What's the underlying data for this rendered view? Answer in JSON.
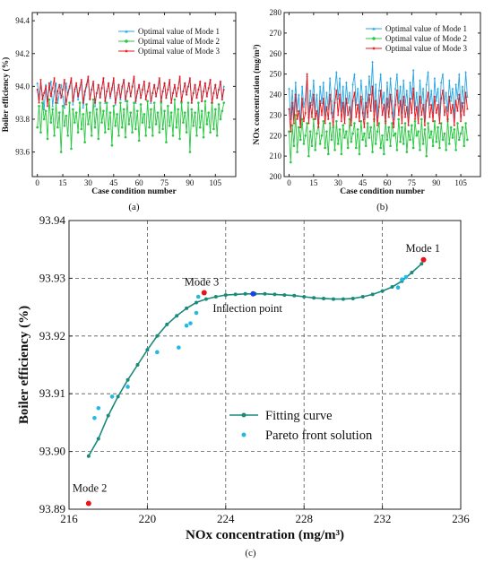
{
  "chart_data": [
    {
      "panel_label": "(a)",
      "type": "line",
      "xlabel": "Case condition number",
      "ylabel": "Boiler efficiency (%)",
      "xlim": [
        -3,
        117
      ],
      "ylim": [
        93.45,
        94.45
      ],
      "xticks": [
        "0",
        "15",
        "30",
        "45",
        "60",
        "75",
        "90",
        "105"
      ],
      "yticks": [
        "93.6",
        "93.8",
        "94.0",
        "94.2",
        "94.4"
      ],
      "legend_position": "top-right",
      "series": [
        {
          "name": "Optimal value of Mode 1",
          "color": "#2aa7e0",
          "marker": "triangle",
          "values": [
            94.02,
            93.93,
            94.0,
            93.95,
            93.86,
            94.01,
            93.92,
            93.98,
            94.03,
            93.88,
            93.97,
            94.02,
            93.9,
            93.96,
            94.01,
            93.94,
            93.87,
            94.02,
            93.95,
            93.99,
            94.04,
            93.89,
            93.97,
            94.01,
            93.92,
            93.98,
            94.03,
            93.87,
            93.95,
            94.0,
            94.04,
            93.93,
            93.98,
            94.02,
            93.88,
            93.96,
            94.01,
            93.94,
            93.99,
            94.05,
            93.9,
            93.97,
            94.02,
            93.93,
            93.98,
            94.04,
            93.89,
            93.95,
            94.01,
            93.92,
            93.99,
            94.04,
            93.91,
            93.97,
            94.02,
            93.94,
            94.0,
            94.05,
            93.9,
            93.96,
            94.01,
            93.93,
            93.98,
            94.03,
            93.92,
            93.97,
            94.02,
            93.9,
            93.96,
            94.01,
            93.94,
            93.99,
            94.04,
            93.91,
            93.97,
            94.02,
            93.93,
            93.98,
            94.03,
            93.9,
            93.96,
            94.0,
            93.94,
            93.99,
            94.05,
            93.91,
            93.97,
            94.02,
            93.95,
            94.0,
            94.04,
            93.9,
            93.96,
            94.01,
            93.93,
            93.98,
            94.03,
            93.91,
            93.97,
            94.02,
            93.94,
            93.99,
            94.04,
            93.9,
            93.96,
            94.01,
            93.93,
            93.98,
            94.03,
            93.92,
            94.0
          ]
        },
        {
          "name": "Optimal value of Mode 2",
          "color": "#28c840",
          "marker": "circle",
          "values": [
            93.75,
            93.88,
            93.72,
            93.9,
            93.8,
            93.85,
            93.68,
            93.92,
            93.78,
            93.86,
            93.7,
            93.9,
            93.75,
            93.84,
            93.6,
            93.88,
            93.76,
            93.82,
            93.7,
            93.9,
            93.62,
            93.86,
            93.78,
            93.84,
            93.72,
            93.9,
            93.74,
            93.83,
            93.66,
            93.89,
            93.77,
            93.84,
            93.7,
            93.92,
            93.75,
            93.86,
            93.68,
            93.9,
            93.78,
            93.85,
            93.72,
            93.9,
            93.74,
            93.84,
            93.64,
            93.88,
            93.76,
            93.83,
            93.7,
            93.9,
            93.75,
            93.86,
            93.69,
            93.91,
            93.77,
            93.84,
            93.72,
            93.9,
            93.74,
            93.85,
            93.67,
            93.89,
            93.78,
            93.83,
            93.7,
            93.91,
            93.75,
            93.86,
            93.7,
            93.9,
            93.77,
            93.84,
            93.72,
            93.9,
            93.74,
            93.85,
            93.66,
            93.88,
            93.76,
            93.84,
            93.7,
            93.92,
            93.75,
            93.86,
            93.68,
            93.9,
            93.78,
            93.84,
            93.72,
            93.9,
            93.6,
            93.86,
            93.76,
            93.84,
            93.7,
            93.9,
            93.75,
            93.85,
            93.69,
            93.91,
            93.77,
            93.84,
            93.72,
            93.9,
            93.74,
            93.86,
            93.7,
            93.89,
            93.8,
            93.85,
            93.9
          ]
        },
        {
          "name": "Optimal value of Mode 3",
          "color": "#e8141a",
          "marker": "star",
          "values": [
            93.98,
            93.9,
            94.04,
            93.92,
            93.96,
            94.0,
            93.88,
            94.02,
            93.94,
            93.99,
            94.05,
            93.9,
            93.97,
            94.01,
            93.93,
            93.98,
            94.04,
            93.89,
            93.96,
            94.0,
            94.05,
            93.91,
            93.98,
            94.02,
            93.94,
            93.99,
            94.04,
            93.9,
            93.97,
            94.01,
            94.06,
            93.92,
            93.98,
            94.03,
            93.9,
            93.96,
            94.01,
            93.93,
            93.99,
            94.05,
            93.91,
            93.97,
            94.02,
            93.94,
            93.99,
            94.05,
            93.9,
            93.96,
            94.01,
            93.93,
            94.0,
            94.04,
            93.92,
            93.97,
            94.02,
            93.94,
            94.0,
            94.06,
            93.91,
            93.97,
            94.01,
            93.93,
            93.98,
            94.03,
            93.92,
            93.97,
            94.02,
            93.91,
            93.96,
            94.01,
            93.94,
            93.99,
            94.05,
            93.91,
            93.97,
            94.02,
            93.93,
            93.98,
            94.04,
            93.9,
            93.96,
            94.01,
            93.94,
            93.99,
            94.06,
            93.91,
            93.97,
            94.02,
            93.95,
            94.0,
            94.05,
            93.9,
            93.96,
            94.01,
            93.93,
            93.98,
            94.03,
            93.91,
            93.97,
            94.02,
            93.94,
            93.99,
            94.04,
            93.9,
            93.96,
            94.01,
            93.93,
            93.98,
            94.03,
            93.92,
            93.98
          ]
        }
      ]
    },
    {
      "panel_label": "(b)",
      "type": "line",
      "xlabel": "Case condition number",
      "ylabel": "NOx concentration (mg/m³)",
      "xlim": [
        -3,
        117
      ],
      "ylim": [
        200,
        280
      ],
      "xticks": [
        "0",
        "15",
        "30",
        "45",
        "60",
        "75",
        "90",
        "105"
      ],
      "yticks": [
        "200",
        "210",
        "220",
        "230",
        "240",
        "250",
        "260",
        "270",
        "280"
      ],
      "legend_position": "top-right",
      "series": [
        {
          "name": "Optimal value of Mode 1",
          "color": "#2aa7e0",
          "marker": "triangle",
          "values": [
            243,
            228,
            242,
            230,
            246,
            232,
            240,
            226,
            244,
            234,
            238,
            249,
            229,
            242,
            235,
            247,
            231,
            240,
            227,
            244,
            236,
            246,
            230,
            241,
            233,
            248,
            237,
            229,
            243,
            251,
            238,
            248,
            232,
            244,
            230,
            246,
            236,
            241,
            229,
            245,
            250,
            235,
            243,
            231,
            247,
            238,
            228,
            244,
            234,
            249,
            240,
            256,
            232,
            245,
            229,
            242,
            250,
            236,
            241,
            230,
            246,
            234,
            248,
            237,
            228,
            243,
            250,
            236,
            244,
            231,
            247,
            235,
            242,
            229,
            246,
            238,
            252,
            233,
            241,
            230,
            247,
            236,
            243,
            229,
            245,
            251,
            235,
            242,
            231,
            248,
            237,
            243,
            230,
            246,
            250,
            236,
            241,
            232,
            247,
            237,
            243,
            229,
            245,
            238,
            250,
            232,
            244,
            236,
            251,
            239
          ]
        },
        {
          "name": "Optimal value of Mode 2",
          "color": "#28c840",
          "marker": "circle",
          "values": [
            222,
            207,
            225,
            215,
            230,
            212,
            224,
            218,
            228,
            216,
            220,
            226,
            210,
            222,
            215,
            228,
            213,
            221,
            226,
            216,
            220,
            227,
            214,
            222,
            211,
            226,
            218,
            224,
            213,
            227,
            216,
            223,
            211,
            225,
            219,
            222,
            214,
            228,
            217,
            221,
            226,
            214,
            223,
            211,
            227,
            218,
            221,
            215,
            226,
            219,
            224,
            212,
            228,
            216,
            222,
            226,
            214,
            220,
            211,
            227,
            218,
            224,
            215,
            226,
            220,
            221,
            213,
            228,
            217,
            224,
            216,
            226,
            212,
            222,
            218,
            225,
            214,
            227,
            220,
            222,
            213,
            228,
            216,
            223,
            210,
            226,
            219,
            222,
            215,
            227,
            217,
            224,
            214,
            226,
            218,
            221,
            213,
            228,
            216,
            224,
            219,
            223,
            213,
            226,
            218,
            221,
            224,
            215,
            226,
            218
          ]
        },
        {
          "name": "Optimal value of Mode 3",
          "color": "#e8141a",
          "marker": "star",
          "values": [
            233,
            222,
            236,
            226,
            240,
            228,
            232,
            224,
            238,
            227,
            231,
            250,
            226,
            236,
            229,
            240,
            228,
            232,
            224,
            237,
            230,
            238,
            226,
            234,
            228,
            240,
            231,
            225,
            236,
            242,
            230,
            240,
            227,
            236,
            226,
            238,
            230,
            234,
            225,
            237,
            241,
            229,
            235,
            227,
            239,
            231,
            224,
            236,
            229,
            240,
            232,
            244,
            227,
            237,
            225,
            234,
            242,
            230,
            235,
            226,
            238,
            229,
            240,
            231,
            224,
            235,
            242,
            230,
            237,
            226,
            239,
            229,
            234,
            225,
            238,
            231,
            243,
            228,
            234,
            226,
            239,
            230,
            235,
            225,
            237,
            241,
            229,
            235,
            227,
            239,
            231,
            235,
            226,
            238,
            242,
            230,
            234,
            227,
            239,
            231,
            235,
            225,
            237,
            232,
            240,
            227,
            236,
            230,
            241,
            233
          ]
        }
      ]
    },
    {
      "panel_label": "(c)",
      "type": "scatter",
      "xlabel": "NOx concentration (mg/m³)",
      "ylabel": "Boiler efficiency (%)",
      "xlim": [
        216,
        236
      ],
      "ylim": [
        93.89,
        93.94
      ],
      "xticks": [
        "216",
        "220",
        "224",
        "228",
        "232",
        "236"
      ],
      "yticks": [
        "93.89",
        "93.90",
        "93.91",
        "93.92",
        "93.93",
        "93.94"
      ],
      "grid": true,
      "legend_position": "center",
      "series": [
        {
          "name": "Fitting curve",
          "color": "#1a8a7a",
          "marker": "circle",
          "curve_points": [
            [
              217.0,
              93.8992
            ],
            [
              217.5,
              93.9022
            ],
            [
              218.0,
              93.9062
            ],
            [
              218.5,
              93.9095
            ],
            [
              219.0,
              93.9124
            ],
            [
              219.5,
              93.915
            ],
            [
              220.0,
              93.9176
            ],
            [
              220.5,
              93.92
            ],
            [
              221.0,
              93.922
            ],
            [
              221.5,
              93.9235
            ],
            [
              222.0,
              93.9248
            ],
            [
              222.5,
              93.9258
            ],
            [
              223.0,
              93.9264
            ],
            [
              223.5,
              93.9268
            ],
            [
              224.0,
              93.9271
            ],
            [
              224.5,
              93.9272
            ],
            [
              225.0,
              93.9273
            ],
            [
              225.5,
              93.9273
            ],
            [
              226.0,
              93.9273
            ],
            [
              226.5,
              93.9272
            ],
            [
              227.0,
              93.9271
            ],
            [
              227.5,
              93.927
            ],
            [
              228.0,
              93.9268
            ],
            [
              228.5,
              93.9266
            ],
            [
              229.0,
              93.9265
            ],
            [
              229.5,
              93.9264
            ],
            [
              230.0,
              93.9264
            ],
            [
              230.5,
              93.9265
            ],
            [
              231.0,
              93.9268
            ],
            [
              231.5,
              93.9272
            ],
            [
              232.0,
              93.9278
            ],
            [
              232.5,
              93.9285
            ],
            [
              233.0,
              93.9295
            ],
            [
              233.5,
              93.931
            ],
            [
              234.0,
              93.9325
            ]
          ]
        },
        {
          "name": "Pareto front solution",
          "color": "#22b8e8",
          "marker": "circle",
          "points": [
            [
              217.3,
              93.9058
            ],
            [
              217.5,
              93.9075
            ],
            [
              218.2,
              93.9095
            ],
            [
              219.0,
              93.9112
            ],
            [
              220.5,
              93.9172
            ],
            [
              221.6,
              93.918
            ],
            [
              222.0,
              93.9218
            ],
            [
              222.2,
              93.9222
            ],
            [
              222.5,
              93.924
            ],
            [
              222.6,
              93.9268
            ],
            [
              232.8,
              93.9284
            ],
            [
              233.0,
              93.9298
            ],
            [
              233.2,
              93.9302
            ]
          ]
        }
      ],
      "annotations": [
        {
          "text": "Mode 1",
          "x": 234.1,
          "y": 93.9332,
          "color": "#e8141a"
        },
        {
          "text": "Mode 2",
          "x": 217.0,
          "y": 93.891,
          "color": "#e8141a"
        },
        {
          "text": "Mode 3",
          "x": 222.9,
          "y": 93.9275,
          "color": "#e8141a"
        },
        {
          "text": "Inflection point",
          "x": 225.4,
          "y": 93.9273,
          "color": "#1e3ee8"
        }
      ]
    }
  ]
}
